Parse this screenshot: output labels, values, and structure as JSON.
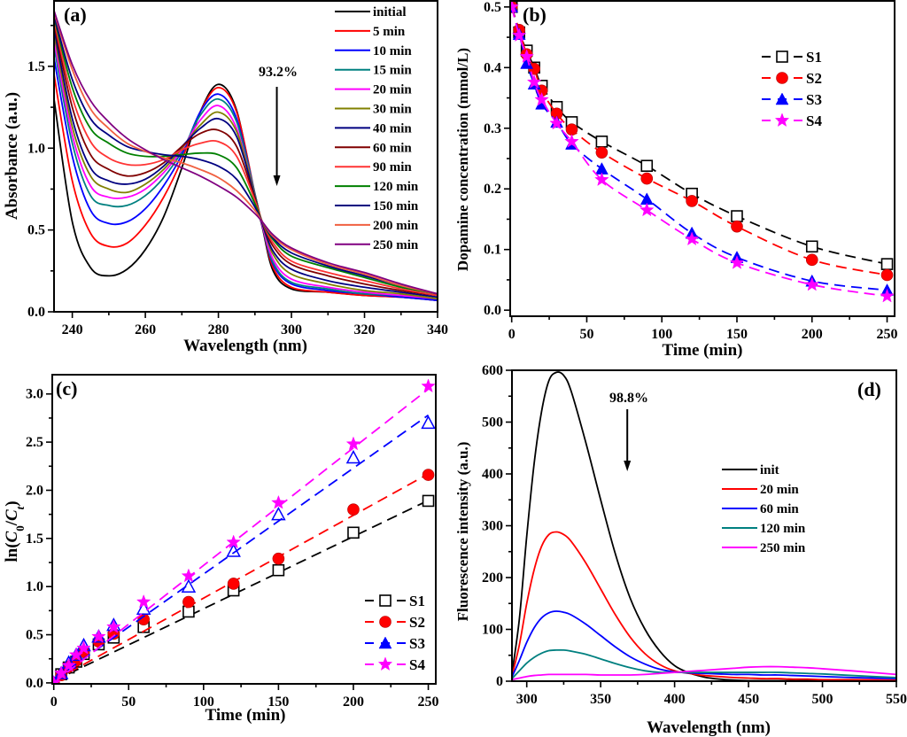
{
  "chart_data": [
    {
      "id": "a",
      "type": "line",
      "panel_label": "(a)",
      "title": "",
      "xlabel": "Wavelength (nm)",
      "ylabel": "Absorbance (a.u.)",
      "xlim": [
        235,
        340
      ],
      "ylim": [
        0.0,
        1.9
      ],
      "xticks": [
        240,
        260,
        280,
        300,
        320,
        340
      ],
      "xtick_labels": [
        "240",
        "260",
        "280",
        "300",
        "320",
        "340"
      ],
      "yticks": [
        0.0,
        0.5,
        1.0,
        1.5
      ],
      "ytick_labels": [
        "0.0",
        "0.5",
        "1.0",
        "1.5"
      ],
      "grid": false,
      "legend_position": "top-right",
      "annotation": {
        "text": "93.2%",
        "arrow": "down",
        "x": 296
      },
      "x": [
        235,
        240,
        245,
        250,
        255,
        260,
        265,
        270,
        275,
        280,
        285,
        290,
        292,
        295,
        300,
        310,
        320,
        330,
        340
      ],
      "series": [
        {
          "name": "initial",
          "color": "#000000",
          "values": [
            1.3,
            0.55,
            0.27,
            0.22,
            0.26,
            0.38,
            0.58,
            0.88,
            1.22,
            1.39,
            1.23,
            0.7,
            0.52,
            0.25,
            0.14,
            0.12,
            0.1,
            0.09,
            0.07
          ]
        },
        {
          "name": "5 min",
          "color": "#ff0000",
          "values": [
            1.45,
            0.8,
            0.48,
            0.4,
            0.42,
            0.53,
            0.7,
            0.93,
            1.22,
            1.37,
            1.22,
            0.72,
            0.53,
            0.27,
            0.15,
            0.12,
            0.1,
            0.09,
            0.07
          ]
        },
        {
          "name": "10 min",
          "color": "#0000ff",
          "values": [
            1.55,
            0.95,
            0.62,
            0.54,
            0.55,
            0.63,
            0.77,
            0.96,
            1.22,
            1.33,
            1.18,
            0.72,
            0.53,
            0.29,
            0.17,
            0.13,
            0.11,
            0.09,
            0.07
          ]
        },
        {
          "name": "15 min",
          "color": "#008080",
          "values": [
            1.62,
            1.03,
            0.71,
            0.65,
            0.65,
            0.71,
            0.82,
            0.98,
            1.2,
            1.3,
            1.16,
            0.72,
            0.53,
            0.3,
            0.18,
            0.14,
            0.11,
            0.1,
            0.08
          ]
        },
        {
          "name": "20 min",
          "color": "#ff00ff",
          "values": [
            1.66,
            1.08,
            0.77,
            0.7,
            0.7,
            0.75,
            0.85,
            0.99,
            1.17,
            1.26,
            1.12,
            0.71,
            0.53,
            0.32,
            0.2,
            0.15,
            0.12,
            0.1,
            0.08
          ]
        },
        {
          "name": "30 min",
          "color": "#808000",
          "values": [
            1.7,
            1.13,
            0.83,
            0.75,
            0.73,
            0.78,
            0.87,
            1.0,
            1.14,
            1.22,
            1.1,
            0.71,
            0.54,
            0.35,
            0.23,
            0.17,
            0.13,
            0.11,
            0.08
          ]
        },
        {
          "name": "40 min",
          "color": "#000080",
          "values": [
            1.73,
            1.18,
            0.88,
            0.8,
            0.78,
            0.81,
            0.89,
            1.01,
            1.12,
            1.18,
            1.07,
            0.7,
            0.54,
            0.37,
            0.26,
            0.19,
            0.15,
            0.12,
            0.09
          ]
        },
        {
          "name": "60 min",
          "color": "#800000",
          "values": [
            1.76,
            1.25,
            0.96,
            0.87,
            0.83,
            0.85,
            0.91,
            1.01,
            1.09,
            1.11,
            1.01,
            0.69,
            0.55,
            0.4,
            0.29,
            0.22,
            0.17,
            0.13,
            0.1
          ]
        },
        {
          "name": "90 min",
          "color": "#ff3333",
          "values": [
            1.78,
            1.31,
            1.04,
            0.94,
            0.9,
            0.9,
            0.93,
            0.99,
            1.03,
            1.04,
            0.95,
            0.68,
            0.55,
            0.42,
            0.31,
            0.24,
            0.19,
            0.14,
            0.1
          ]
        },
        {
          "name": "120 min",
          "color": "#008000",
          "values": [
            1.8,
            1.37,
            1.12,
            1.03,
            0.97,
            0.95,
            0.95,
            0.96,
            0.97,
            0.96,
            0.88,
            0.66,
            0.55,
            0.44,
            0.34,
            0.27,
            0.21,
            0.15,
            0.11
          ]
        },
        {
          "name": "150 min",
          "color": "#000080",
          "values": [
            1.81,
            1.42,
            1.18,
            1.08,
            1.01,
            0.98,
            0.96,
            0.95,
            0.93,
            0.89,
            0.81,
            0.64,
            0.55,
            0.45,
            0.36,
            0.28,
            0.22,
            0.16,
            0.11
          ]
        },
        {
          "name": "200 min",
          "color": "#f06040",
          "values": [
            1.83,
            1.48,
            1.24,
            1.12,
            1.03,
            0.98,
            0.94,
            0.91,
            0.87,
            0.82,
            0.74,
            0.62,
            0.55,
            0.46,
            0.38,
            0.29,
            0.23,
            0.16,
            0.11
          ]
        },
        {
          "name": "250 min",
          "color": "#800080",
          "values": [
            1.84,
            1.51,
            1.29,
            1.16,
            1.06,
            0.99,
            0.93,
            0.88,
            0.83,
            0.77,
            0.7,
            0.6,
            0.55,
            0.47,
            0.39,
            0.3,
            0.24,
            0.17,
            0.11
          ]
        }
      ]
    },
    {
      "id": "b",
      "type": "scatter",
      "panel_label": "(b)",
      "title": "",
      "xlabel": "Time (min)",
      "ylabel": "Dopamine concentration (mmol/L)",
      "xlim": [
        -1,
        255
      ],
      "ylim": [
        -0.01,
        0.51
      ],
      "xticks": [
        0,
        50,
        100,
        150,
        200,
        250
      ],
      "xtick_labels": [
        "0",
        "50",
        "100",
        "150",
        "200",
        "250"
      ],
      "yticks": [
        0.0,
        0.1,
        0.2,
        0.3,
        0.4,
        0.5
      ],
      "ytick_labels": [
        "0.0",
        "0.1",
        "0.2",
        "0.3",
        "0.4",
        "0.5"
      ],
      "grid": false,
      "legend_position": "top-right",
      "x": [
        0,
        5,
        10,
        15,
        20,
        30,
        40,
        60,
        90,
        120,
        150,
        200,
        250
      ],
      "series": [
        {
          "name": "S1",
          "color": "#000000",
          "marker": "open-square",
          "values": [
            0.5,
            0.458,
            0.428,
            0.4,
            0.37,
            0.335,
            0.31,
            0.278,
            0.238,
            0.192,
            0.155,
            0.105,
            0.076
          ]
        },
        {
          "name": "S2",
          "color": "#ff0000",
          "marker": "filled-circle",
          "values": [
            0.5,
            0.462,
            0.422,
            0.398,
            0.362,
            0.324,
            0.298,
            0.26,
            0.217,
            0.18,
            0.138,
            0.083,
            0.058
          ]
        },
        {
          "name": "S3",
          "color": "#0000ff",
          "marker": "filled-triangle",
          "values": [
            0.5,
            0.455,
            0.407,
            0.373,
            0.34,
            0.31,
            0.274,
            0.233,
            0.183,
            0.127,
            0.087,
            0.048,
            0.033
          ]
        },
        {
          "name": "S4",
          "color": "#ff00ff",
          "marker": "filled-star",
          "values": [
            0.5,
            0.453,
            0.418,
            0.376,
            0.347,
            0.308,
            0.278,
            0.215,
            0.165,
            0.117,
            0.078,
            0.042,
            0.023
          ]
        }
      ]
    },
    {
      "id": "c",
      "type": "scatter",
      "panel_label": "(c)",
      "title": "",
      "xlabel": "Time (min)",
      "ylabel": "ln(C0/Ct)",
      "ylabel_parts": {
        "pre": "ln(",
        "c": "C",
        "sub0": "0",
        "slash": "/",
        "sub_t": "t",
        "post": ")"
      },
      "xlim": [
        -1,
        255
      ],
      "ylim": [
        -0.01,
        3.2
      ],
      "xticks": [
        0,
        50,
        100,
        150,
        200,
        250
      ],
      "xtick_labels": [
        "0",
        "50",
        "100",
        "150",
        "200",
        "250"
      ],
      "yticks": [
        0.0,
        0.5,
        1.0,
        1.5,
        2.0,
        2.5,
        3.0
      ],
      "ytick_labels": [
        "0.0",
        "0.5",
        "1.0",
        "1.5",
        "2.0",
        "2.5",
        "3.0"
      ],
      "grid": false,
      "legend_position": "bottom-right",
      "x": [
        0,
        5,
        10,
        15,
        20,
        30,
        40,
        60,
        90,
        120,
        150,
        200,
        250
      ],
      "series": [
        {
          "name": "S1",
          "color": "#000000",
          "marker": "open-square",
          "values": [
            0.0,
            0.09,
            0.16,
            0.22,
            0.3,
            0.4,
            0.47,
            0.58,
            0.74,
            0.96,
            1.17,
            1.56,
            1.89
          ],
          "fit": [
            0.02,
            0.0075
          ]
        },
        {
          "name": "S2",
          "color": "#ff0000",
          "marker": "filled-circle",
          "values": [
            0.0,
            0.08,
            0.17,
            0.23,
            0.32,
            0.43,
            0.51,
            0.66,
            0.84,
            1.03,
            1.29,
            1.8,
            2.16
          ],
          "fit": [
            0.02,
            0.0086
          ]
        },
        {
          "name": "S3",
          "color": "#0000ff",
          "marker": "open-triangle",
          "values": [
            0.0,
            0.1,
            0.21,
            0.29,
            0.39,
            0.48,
            0.6,
            0.77,
            1.0,
            1.37,
            1.75,
            2.34,
            2.7
          ],
          "fit": [
            0.03,
            0.011
          ]
        },
        {
          "name": "S4",
          "color": "#ff00ff",
          "marker": "filled-star",
          "values": [
            0.0,
            0.1,
            0.18,
            0.29,
            0.36,
            0.48,
            0.58,
            0.84,
            1.11,
            1.46,
            1.87,
            2.48,
            3.08
          ],
          "fit": [
            0.0,
            0.0122
          ]
        }
      ],
      "legend_markers": [
        "open-square",
        "filled-circle",
        "filled-triangle",
        "filled-star"
      ]
    },
    {
      "id": "d",
      "type": "line",
      "panel_label": "(d)",
      "title": "",
      "xlabel": "Wavelength (nm)",
      "ylabel": "Fluorescence intensity (a.u.)",
      "xlim": [
        290,
        550
      ],
      "ylim": [
        0,
        600
      ],
      "xticks": [
        300,
        350,
        400,
        450,
        500,
        550
      ],
      "xtick_labels": [
        "300",
        "350",
        "400",
        "450",
        "500",
        "550"
      ],
      "yticks": [
        0,
        100,
        200,
        300,
        400,
        500,
        600
      ],
      "ytick_labels": [
        "0",
        "100",
        "200",
        "300",
        "400",
        "500",
        "600"
      ],
      "grid": false,
      "legend_position": "center-right",
      "annotation": {
        "text": "98.8%",
        "arrow": "down",
        "x": 368
      },
      "x": [
        290,
        295,
        300,
        305,
        310,
        315,
        320,
        325,
        330,
        340,
        350,
        360,
        370,
        380,
        390,
        400,
        410,
        420,
        430,
        440,
        450,
        460,
        470,
        480,
        490,
        500,
        520,
        550
      ],
      "series": [
        {
          "name": "init",
          "color": "#000000",
          "values": [
            15,
            120,
            280,
            420,
            520,
            580,
            596,
            590,
            560,
            460,
            350,
            245,
            160,
            100,
            58,
            30,
            16,
            8,
            4,
            2,
            1,
            1,
            1,
            1,
            1,
            1,
            1,
            1
          ]
        },
        {
          "name": "20 min",
          "color": "#ff0000",
          "values": [
            10,
            70,
            150,
            215,
            260,
            283,
            288,
            283,
            270,
            228,
            178,
            128,
            85,
            53,
            32,
            20,
            15,
            11,
            9,
            7,
            6,
            5,
            5,
            4,
            4,
            3,
            3,
            2
          ]
        },
        {
          "name": "60 min",
          "color": "#0000ff",
          "values": [
            8,
            40,
            75,
            103,
            122,
            132,
            135,
            133,
            128,
            110,
            88,
            66,
            47,
            33,
            23,
            18,
            16,
            15,
            14,
            13,
            13,
            12,
            12,
            11,
            10,
            9,
            7,
            5
          ]
        },
        {
          "name": "120 min",
          "color": "#008080",
          "values": [
            5,
            20,
            35,
            46,
            54,
            59,
            60,
            60,
            58,
            52,
            43,
            34,
            26,
            20,
            17,
            17,
            17,
            17,
            17,
            17,
            17,
            17,
            17,
            16,
            15,
            14,
            11,
            7
          ]
        },
        {
          "name": "250 min",
          "color": "#ff00ff",
          "values": [
            3,
            6,
            9,
            11,
            12,
            13,
            13,
            13,
            13,
            13,
            12,
            12,
            12,
            13,
            15,
            17,
            19,
            21,
            23,
            25,
            27,
            28,
            28,
            27,
            26,
            24,
            20,
            13
          ]
        }
      ]
    }
  ]
}
